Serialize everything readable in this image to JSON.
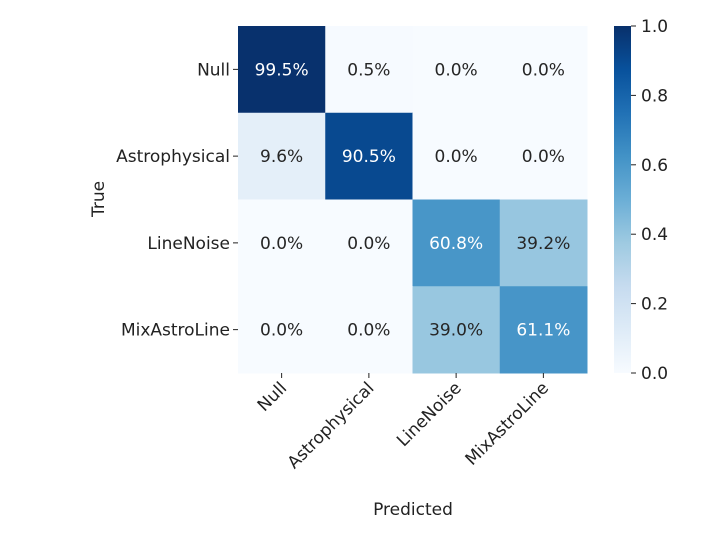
{
  "chart_data": {
    "type": "heatmap",
    "title": "",
    "xlabel": "Predicted",
    "ylabel": "True",
    "x_categories": [
      "Null",
      "Astrophysical",
      "LineNoise",
      "MixAstroLine"
    ],
    "y_categories": [
      "Null",
      "Astrophysical",
      "LineNoise",
      "MixAstroLine"
    ],
    "values": [
      [
        0.995,
        0.005,
        0.0,
        0.0
      ],
      [
        0.096,
        0.905,
        0.0,
        0.0
      ],
      [
        0.0,
        0.0,
        0.608,
        0.392
      ],
      [
        0.0,
        0.0,
        0.39,
        0.611
      ]
    ],
    "labels": [
      [
        "99.5%",
        "0.5%",
        "0.0%",
        "0.0%"
      ],
      [
        "9.6%",
        "90.5%",
        "0.0%",
        "0.0%"
      ],
      [
        "0.0%",
        "0.0%",
        "60.8%",
        "39.2%"
      ],
      [
        "0.0%",
        "0.0%",
        "39.0%",
        "61.1%"
      ]
    ],
    "colorbar": {
      "range": [
        0.0,
        1.0
      ],
      "ticks": [
        "0.0",
        "0.2",
        "0.4",
        "0.6",
        "0.8",
        "1.0"
      ]
    },
    "colormap": [
      "#f7fbff",
      "#deebf7",
      "#c6dbef",
      "#9ecae1",
      "#6baed6",
      "#4292c6",
      "#2171b5",
      "#08519c",
      "#08306b"
    ],
    "dark_text_color": "#262626",
    "light_text_color": "#ffffff",
    "grid": false
  }
}
